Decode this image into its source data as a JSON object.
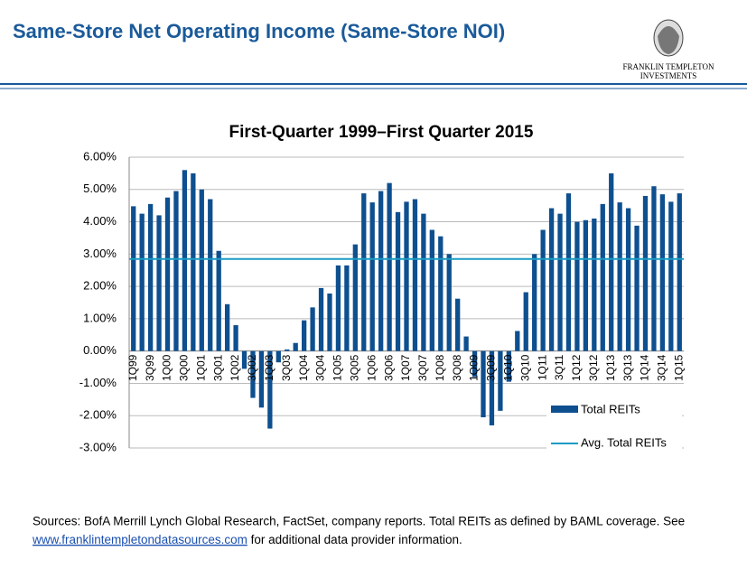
{
  "header": {
    "title": "Same-Store Net Operating Income (Same-Store NOI)",
    "logo": [
      "FRANKLIN TEMPLETON",
      "INVESTMENTS"
    ]
  },
  "chart_data": {
    "type": "bar",
    "title": "First-Quarter 1999–First Quarter 2015",
    "categories": [
      "1Q99",
      null,
      "3Q99",
      null,
      "1Q00",
      null,
      "3Q00",
      null,
      "1Q01",
      null,
      "3Q01",
      null,
      "1Q02",
      null,
      "3Q02",
      null,
      "1Q03",
      null,
      "3Q03",
      null,
      "1Q04",
      null,
      "3Q04",
      null,
      "1Q05",
      null,
      "3Q05",
      null,
      "1Q06",
      null,
      "3Q06",
      null,
      "1Q07",
      null,
      "3Q07",
      null,
      "1Q08",
      null,
      "3Q08",
      null,
      "1Q09",
      null,
      "3Q09",
      null,
      "1Q10",
      null,
      "3Q10",
      null,
      "1Q11",
      null,
      "3Q11",
      null,
      "1Q12",
      null,
      "3Q12",
      null,
      "1Q13",
      null,
      "3Q13",
      null,
      "1Q14",
      null,
      "3Q14",
      null,
      "1Q15"
    ],
    "series": [
      {
        "name": "Total REITs",
        "color": "#0e4f8f",
        "values": [
          4.48,
          4.25,
          4.55,
          4.2,
          4.75,
          4.95,
          5.6,
          5.5,
          5.0,
          4.7,
          3.1,
          1.45,
          0.8,
          -0.55,
          -1.45,
          -1.75,
          -2.4,
          -0.35,
          0.05,
          0.25,
          0.95,
          1.35,
          1.95,
          1.78,
          2.65,
          2.65,
          3.3,
          4.88,
          4.6,
          4.95,
          5.2,
          4.3,
          4.62,
          4.7,
          4.25,
          3.75,
          3.55,
          3.0,
          1.62,
          0.45,
          -0.8,
          -2.05,
          -2.3,
          -1.85,
          -0.95,
          0.62,
          1.82,
          3.0,
          3.75,
          4.42,
          4.25,
          4.88,
          4.0,
          4.05,
          4.1,
          4.55,
          5.5,
          4.6,
          4.42,
          3.88,
          4.8,
          5.1,
          4.85,
          4.62,
          4.88
        ]
      }
    ],
    "average": {
      "name": "Avg. Total REITs",
      "color": "#1a9bc4",
      "value": 2.85
    },
    "ylim": [
      -3,
      6
    ],
    "yticks": [
      {
        "value": -3,
        "label": "-3.00%"
      },
      {
        "value": -2,
        "label": "-2.00%"
      },
      {
        "value": -1,
        "label": "-1.00%"
      },
      {
        "value": 0,
        "label": "0.00%"
      },
      {
        "value": 1,
        "label": "1.00%"
      },
      {
        "value": 2,
        "label": "2.00%"
      },
      {
        "value": 3,
        "label": "3.00%"
      },
      {
        "value": 4,
        "label": "4.00%"
      },
      {
        "value": 5,
        "label": "5.00%"
      },
      {
        "value": 6,
        "label": "6.00%"
      }
    ],
    "grid": true,
    "legend": "lower right"
  },
  "footer": {
    "text": "Sources: BofA Merrill Lynch Global Research, FactSet, company reports. Total REITs as defined by BAML coverage. See",
    "link": "www.franklintempletondatasources.com",
    "text2": "for additional data provider information."
  }
}
